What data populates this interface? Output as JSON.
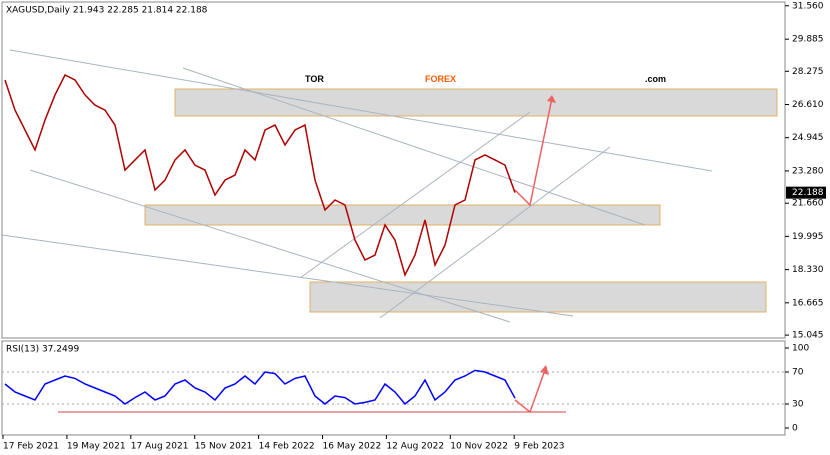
{
  "chart_data": {
    "type": "line",
    "header": "XAGUSD,Daily  21.943 22.285 21.814 22.188",
    "logo": {
      "part1": "TOR",
      "part2": "FOREX",
      "part3": ".com"
    },
    "x_labels": [
      "17 Feb 2021",
      "19 May 2021",
      "17 Aug 2021",
      "15 Nov 2021",
      "14 Feb 2022",
      "16 May 2022",
      "12 Aug 2022",
      "10 Nov 2022",
      "9 Feb 2023"
    ],
    "ylim": [
      14.9,
      31.85
    ],
    "yticks": [
      {
        "value": 31.56,
        "label": "31.560"
      },
      {
        "value": 29.885,
        "label": "29.885"
      },
      {
        "value": 28.275,
        "label": "28.275"
      },
      {
        "value": 26.61,
        "label": "26.610"
      },
      {
        "value": 24.945,
        "label": "24.945"
      },
      {
        "value": 23.28,
        "label": "23.280"
      },
      {
        "value": 21.66,
        "label": "21.660"
      },
      {
        "value": 19.995,
        "label": "19.995"
      },
      {
        "value": 18.33,
        "label": "18.330"
      },
      {
        "value": 16.665,
        "label": "16.665"
      },
      {
        "value": 15.045,
        "label": "15.045"
      }
    ],
    "last_price": 22.188,
    "series": [
      {
        "name": "XAGUSD",
        "color": "#b00000",
        "values": [
          27.84,
          26.33,
          25.33,
          24.33,
          25.83,
          27.09,
          28.09,
          27.84,
          27.09,
          26.58,
          26.33,
          25.58,
          23.32,
          23.83,
          24.33,
          22.32,
          22.82,
          23.83,
          24.33,
          23.57,
          23.32,
          22.07,
          22.82,
          23.07,
          24.33,
          23.83,
          25.33,
          25.58,
          24.58,
          25.33,
          25.58,
          22.82,
          21.32,
          21.82,
          21.57,
          19.81,
          18.81,
          19.06,
          20.57,
          19.81,
          18.06,
          19.06,
          20.82,
          18.56,
          19.56,
          21.57,
          21.82,
          23.83,
          24.08,
          23.83,
          23.57,
          22.19
        ]
      }
    ],
    "rsi": {
      "title": "RSI(13) 37.2499",
      "color": "#0000ff",
      "ylim": [
        -8.75,
        108.75
      ],
      "yticks": [
        100,
        70,
        30,
        0
      ],
      "values": [
        55,
        45,
        40,
        35,
        55,
        60,
        65,
        62,
        55,
        50,
        45,
        40,
        30,
        38,
        45,
        35,
        40,
        55,
        60,
        50,
        45,
        35,
        50,
        55,
        65,
        55,
        70,
        68,
        55,
        62,
        65,
        40,
        30,
        40,
        38,
        30,
        32,
        35,
        55,
        45,
        30,
        40,
        60,
        35,
        45,
        60,
        65,
        72,
        70,
        65,
        60,
        37.25
      ]
    }
  }
}
